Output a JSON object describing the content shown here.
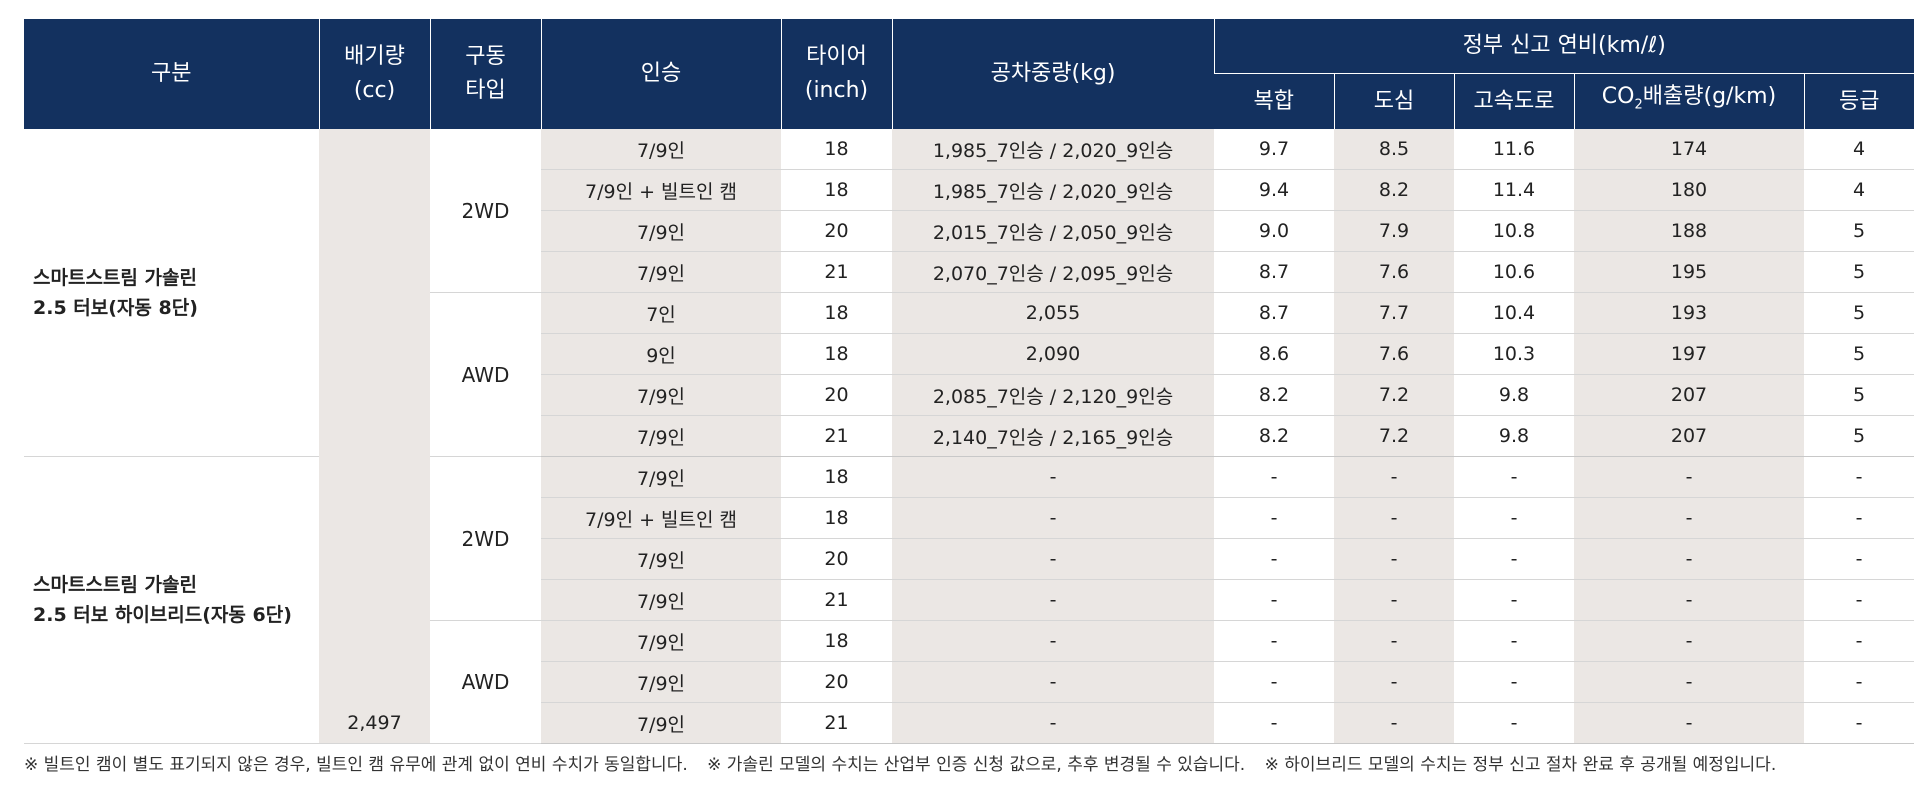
{
  "header": {
    "category": "구분",
    "displacement_line1": "배기량",
    "displacement_line2": "(cc)",
    "drive_line1": "구동",
    "drive_line2": "타입",
    "seating": "인승",
    "tire_line1": "타이어",
    "tire_line2": "(inch)",
    "curb_weight": "공차중량(kg)",
    "fuel_eff_group": "정부 신고 연비(km/ℓ)",
    "combined": "복합",
    "city": "도심",
    "highway": "고속도로",
    "co2_prefix": "CO",
    "co2_sub": "2",
    "co2_suffix": "배출량(g/km)",
    "grade": "등급"
  },
  "groups": [
    {
      "name_line1": "스마트스트림 가솔린",
      "name_line2": "2.5 터보(자동 8단)"
    },
    {
      "name_line1": "스마트스트림 가솔린",
      "name_line2": "2.5 터보 하이브리드(자동 6단)"
    }
  ],
  "displacement": "2,497",
  "drive_types": [
    "2WD",
    "AWD",
    "2WD",
    "AWD"
  ],
  "rows": [
    {
      "seating": "7/9인",
      "tire": "18",
      "weight": "1,985_7인승 / 2,020_9인승",
      "combined": "9.7",
      "city": "8.5",
      "highway": "11.6",
      "co2": "174",
      "grade": "4"
    },
    {
      "seating": "7/9인 + 빌트인 캠",
      "tire": "18",
      "weight": "1,985_7인승 / 2,020_9인승",
      "combined": "9.4",
      "city": "8.2",
      "highway": "11.4",
      "co2": "180",
      "grade": "4"
    },
    {
      "seating": "7/9인",
      "tire": "20",
      "weight": "2,015_7인승 / 2,050_9인승",
      "combined": "9.0",
      "city": "7.9",
      "highway": "10.8",
      "co2": "188",
      "grade": "5"
    },
    {
      "seating": "7/9인",
      "tire": "21",
      "weight": "2,070_7인승 / 2,095_9인승",
      "combined": "8.7",
      "city": "7.6",
      "highway": "10.6",
      "co2": "195",
      "grade": "5"
    },
    {
      "seating": "7인",
      "tire": "18",
      "weight": "2,055",
      "combined": "8.7",
      "city": "7.7",
      "highway": "10.4",
      "co2": "193",
      "grade": "5"
    },
    {
      "seating": "9인",
      "tire": "18",
      "weight": "2,090",
      "combined": "8.6",
      "city": "7.6",
      "highway": "10.3",
      "co2": "197",
      "grade": "5"
    },
    {
      "seating": "7/9인",
      "tire": "20",
      "weight": "2,085_7인승 / 2,120_9인승",
      "combined": "8.2",
      "city": "7.2",
      "highway": "9.8",
      "co2": "207",
      "grade": "5"
    },
    {
      "seating": "7/9인",
      "tire": "21",
      "weight": "2,140_7인승 / 2,165_9인승",
      "combined": "8.2",
      "city": "7.2",
      "highway": "9.8",
      "co2": "207",
      "grade": "5"
    },
    {
      "seating": "7/9인",
      "tire": "18",
      "weight": "-",
      "combined": "-",
      "city": "-",
      "highway": "-",
      "co2": "-",
      "grade": "-"
    },
    {
      "seating": "7/9인 + 빌트인 캠",
      "tire": "18",
      "weight": "-",
      "combined": "-",
      "city": "-",
      "highway": "-",
      "co2": "-",
      "grade": "-"
    },
    {
      "seating": "7/9인",
      "tire": "20",
      "weight": "-",
      "combined": "-",
      "city": "-",
      "highway": "-",
      "co2": "-",
      "grade": "-"
    },
    {
      "seating": "7/9인",
      "tire": "21",
      "weight": "-",
      "combined": "-",
      "city": "-",
      "highway": "-",
      "co2": "-",
      "grade": "-"
    },
    {
      "seating": "7/9인",
      "tire": "18",
      "weight": "-",
      "combined": "-",
      "city": "-",
      "highway": "-",
      "co2": "-",
      "grade": "-"
    },
    {
      "seating": "7/9인",
      "tire": "20",
      "weight": "-",
      "combined": "-",
      "city": "-",
      "highway": "-",
      "co2": "-",
      "grade": "-"
    },
    {
      "seating": "7/9인",
      "tire": "21",
      "weight": "-",
      "combined": "-",
      "city": "-",
      "highway": "-",
      "co2": "-",
      "grade": "-"
    }
  ],
  "footnotes": [
    "※ 빌트인 캠이 별도 표기되지 않은 경우, 빌트인 캠 유무에 관계 없이 연비 수치가 동일합니다.",
    "※ 가솔린 모델의 수치는 산업부 인증 신청 값으로, 추후 변경될 수 있습니다.",
    "※ 하이브리드 모델의 수치는 정부 신고 절차 완료 후 공개될 예정입니다."
  ]
}
